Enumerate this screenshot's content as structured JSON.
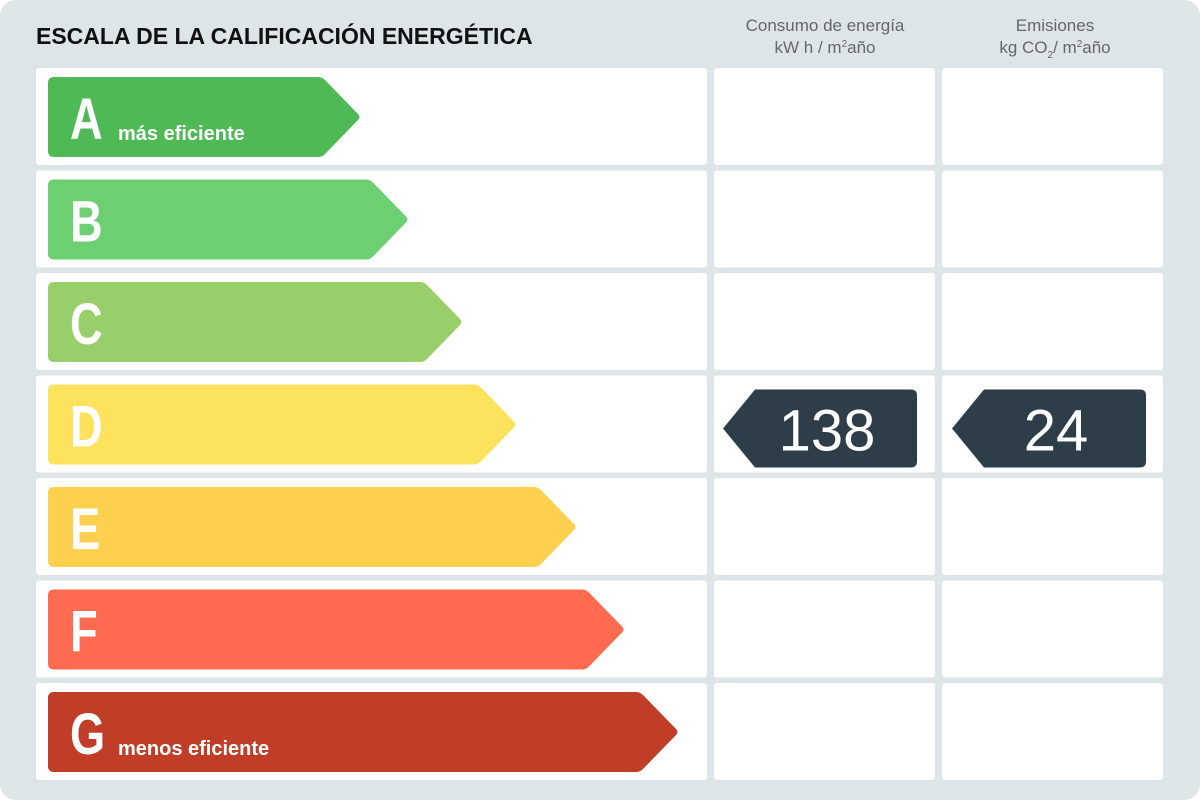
{
  "title": "ESCALA DE LA CALIFICACIÓN ENERGÉTICA",
  "columns": {
    "consumption": {
      "line1": "Consumo de energía",
      "line2": [
        "kW h / m",
        "2",
        "año"
      ]
    },
    "emissions": {
      "line1": "Emisiones",
      "line2": [
        "kg CO",
        "2",
        "/ m",
        "2",
        "año"
      ]
    }
  },
  "ratings": [
    {
      "letter": "A",
      "note": "más eficiente",
      "color": "#4fb955"
    },
    {
      "letter": "B",
      "color": "#6ccf72"
    },
    {
      "letter": "C",
      "color": "#98cf6b"
    },
    {
      "letter": "D",
      "color": "#fde35d",
      "consumption": 138,
      "emissions": 24
    },
    {
      "letter": "E",
      "color": "#fed04f"
    },
    {
      "letter": "F",
      "color": "#ff6b50"
    },
    {
      "letter": "G",
      "note": "menos eficiente",
      "color": "#c03d27"
    }
  ]
}
